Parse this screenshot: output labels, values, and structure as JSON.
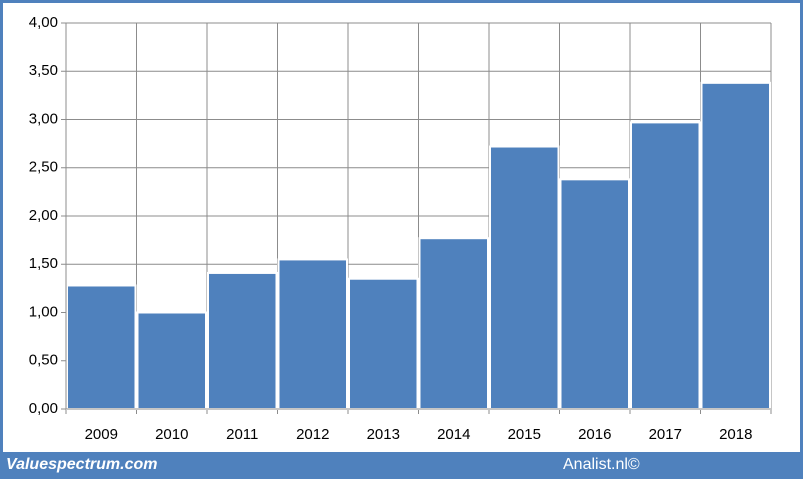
{
  "chart_data": {
    "type": "bar",
    "categories": [
      "2009",
      "2010",
      "2011",
      "2012",
      "2013",
      "2014",
      "2015",
      "2016",
      "2017",
      "2018"
    ],
    "values": [
      1.28,
      1.0,
      1.41,
      1.55,
      1.35,
      1.77,
      2.72,
      2.38,
      2.97,
      3.38
    ],
    "color": "#4f81bd",
    "ylim": [
      0,
      4
    ],
    "yticks": [
      {
        "value": 0,
        "label": "0,00"
      },
      {
        "value": 0.5,
        "label": "0,50"
      },
      {
        "value": 1,
        "label": "1,00"
      },
      {
        "value": 1.5,
        "label": "1,50"
      },
      {
        "value": 2,
        "label": "2,00"
      },
      {
        "value": 2.5,
        "label": "2,50"
      },
      {
        "value": 3,
        "label": "3,00"
      },
      {
        "value": 3.5,
        "label": "3,50"
      },
      {
        "value": 4,
        "label": "4,00"
      }
    ],
    "grid": true
  },
  "footer": {
    "left": "Valuespectrum.com",
    "right": "Analist.nl©"
  }
}
